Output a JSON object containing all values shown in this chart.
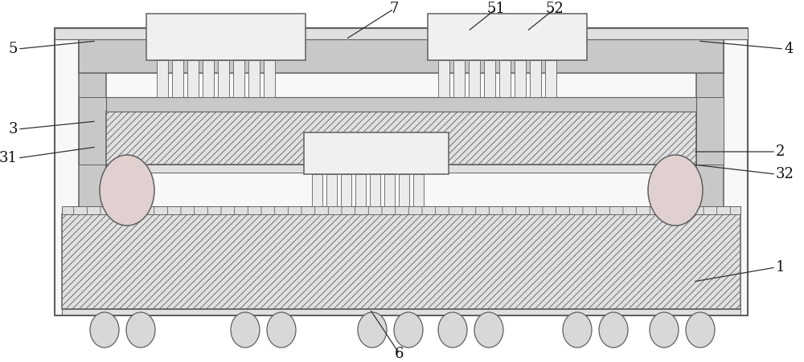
{
  "fig_width": 10.0,
  "fig_height": 4.51,
  "dpi": 100,
  "bg": "#ffffff",
  "lc": "#606060",
  "lw": 1.1,
  "gray_hatch": "#c8c8c8",
  "dot_fill": "#c8c8c8",
  "hatch_fill": "#e0e0e0",
  "white_fill": "#f8f8f8",
  "chip_fill": "#f0f0f0",
  "ball_fill": "#d8d8d8",
  "pink_fill": "#e8d8d8",
  "label_fs": 13,
  "label_color": "#111111",
  "annot_lw": 0.9,
  "annot_color": "#333333"
}
